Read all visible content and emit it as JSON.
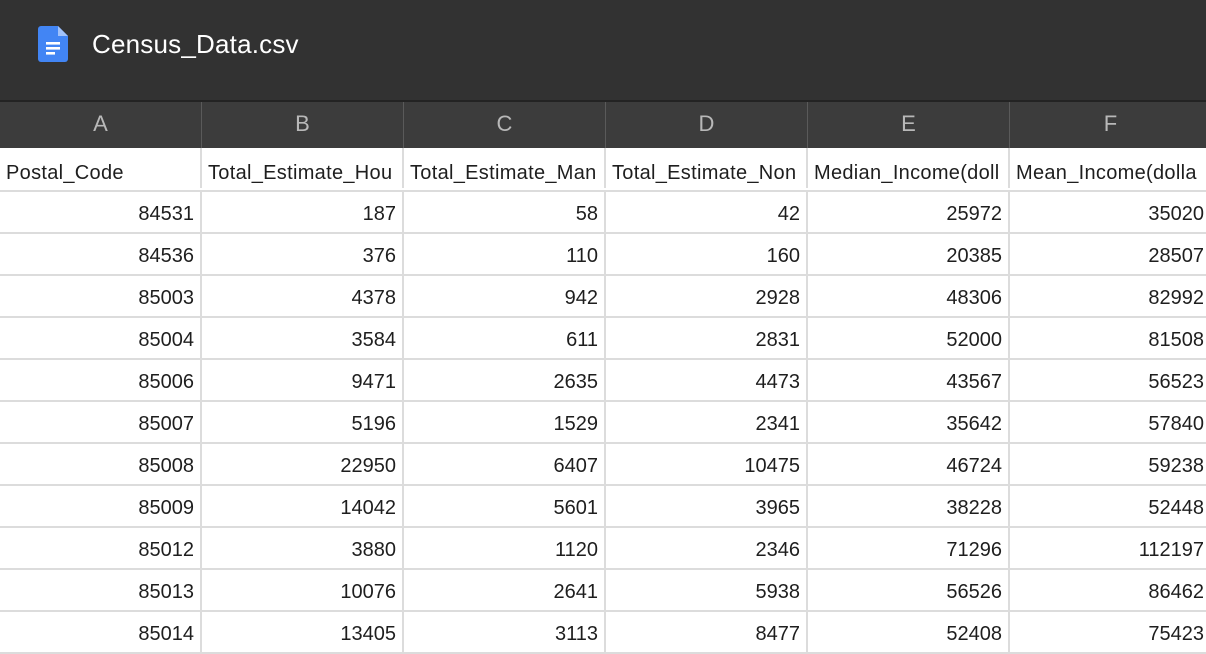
{
  "app": {
    "file_name": "Census_Data.csv",
    "file_icon": "google-docs-icon",
    "accent": "#4285f4"
  },
  "columns": [
    "A",
    "B",
    "C",
    "D",
    "E",
    "F"
  ],
  "header_row": [
    "Postal_Code",
    "Total_Estimate_Hou",
    "Total_Estimate_Man",
    "Total_Estimate_Non",
    "Median_Income(doll",
    "Mean_Income(dolla"
  ],
  "rows": [
    [
      "84531",
      "187",
      "58",
      "42",
      "25972",
      "35020"
    ],
    [
      "84536",
      "376",
      "110",
      "160",
      "20385",
      "28507"
    ],
    [
      "85003",
      "4378",
      "942",
      "2928",
      "48306",
      "82992"
    ],
    [
      "85004",
      "3584",
      "611",
      "2831",
      "52000",
      "81508"
    ],
    [
      "85006",
      "9471",
      "2635",
      "4473",
      "43567",
      "56523"
    ],
    [
      "85007",
      "5196",
      "1529",
      "2341",
      "35642",
      "57840"
    ],
    [
      "85008",
      "22950",
      "6407",
      "10475",
      "46724",
      "59238"
    ],
    [
      "85009",
      "14042",
      "5601",
      "3965",
      "38228",
      "52448"
    ],
    [
      "85012",
      "3880",
      "1120",
      "2346",
      "71296",
      "112197"
    ],
    [
      "85013",
      "10076",
      "2641",
      "5938",
      "56526",
      "86462"
    ],
    [
      "85014",
      "13405",
      "3113",
      "8477",
      "52408",
      "75423"
    ]
  ]
}
